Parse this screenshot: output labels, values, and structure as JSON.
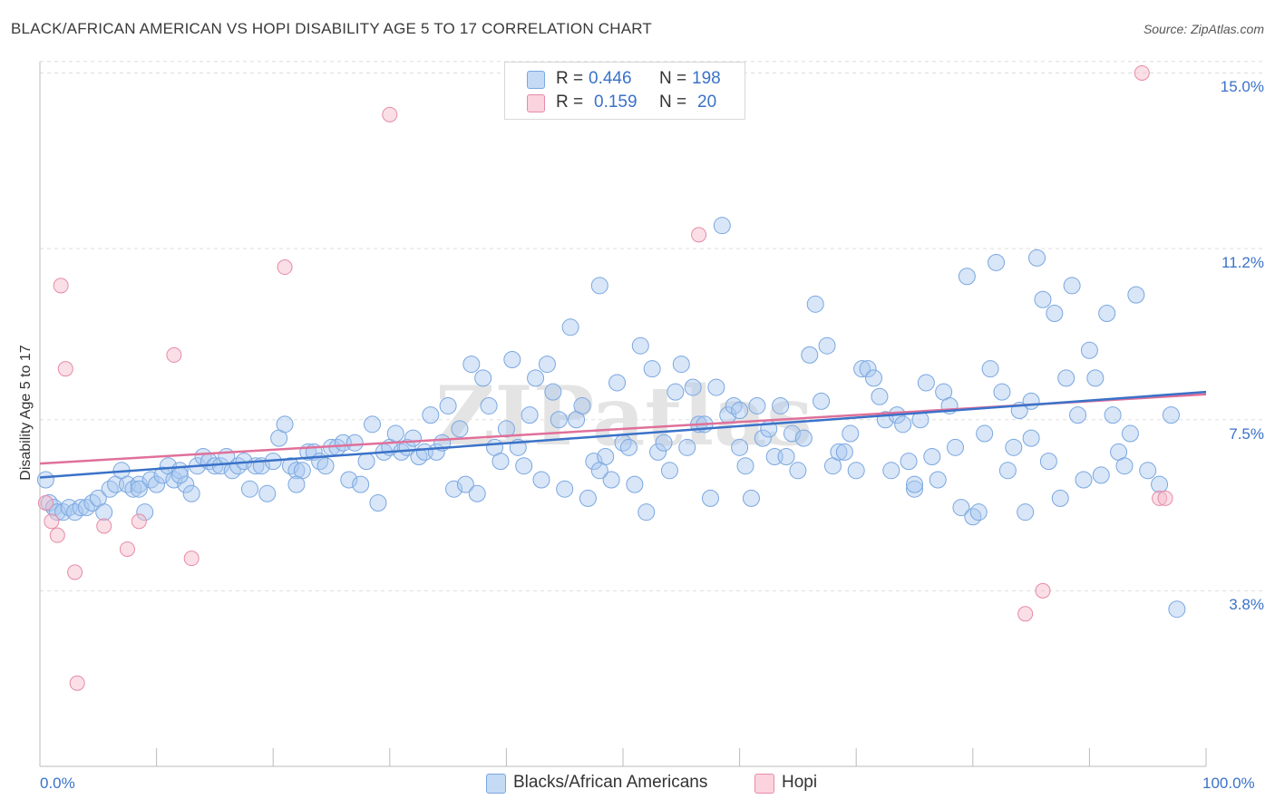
{
  "title": "BLACK/AFRICAN AMERICAN VS HOPI DISABILITY AGE 5 TO 17 CORRELATION CHART",
  "source": "Source: ZipAtlas.com",
  "watermark": "ZIPatlas",
  "legend": {
    "r_label": "R =",
    "n_label": "N =",
    "entries": [
      {
        "r": "0.446",
        "n": "198",
        "color": "#a8c8f0"
      },
      {
        "r": "0.159",
        "n": "20",
        "color": "#f5b8ca"
      }
    ]
  },
  "bottom_legend": [
    {
      "label": "Blacks/African Americans",
      "color": "#a8c8f0"
    },
    {
      "label": "Hopi",
      "color": "#f5b8ca"
    }
  ],
  "colors": {
    "blue_point": "#a8c8f0",
    "blue_stroke": "#7aa7e0",
    "blue_line": "#3a72c8",
    "pink_point": "#f5b8ca",
    "pink_stroke": "#e88aa6",
    "pink_line": "#e0709a",
    "axis_label": "#3a72c8",
    "grid": "#dddddd"
  },
  "chart_data": {
    "type": "scatter",
    "title": "BLACK/AFRICAN AMERICAN VS HOPI DISABILITY AGE 5 TO 17 CORRELATION CHART",
    "xlabel": "",
    "ylabel": "Disability Age 5 to 17",
    "xlim": [
      0,
      100
    ],
    "ylim": [
      0,
      15.5
    ],
    "x_tick_labels": [
      "0.0%",
      "100.0%"
    ],
    "y_tick_labels": [
      "3.8%",
      "7.5%",
      "11.2%",
      "15.0%"
    ],
    "y_ticks": [
      3.8,
      7.5,
      11.2,
      15.0
    ],
    "grid": true,
    "legend_position": "top-center",
    "series": [
      {
        "name": "Blacks/African Americans",
        "r": 0.446,
        "n": 198,
        "trend": {
          "x": [
            0,
            100
          ],
          "y": [
            6.25,
            8.1
          ]
        },
        "points": [
          [
            0.5,
            6.2
          ],
          [
            0.8,
            5.7
          ],
          [
            1.2,
            5.6
          ],
          [
            1.5,
            5.5
          ],
          [
            2,
            5.5
          ],
          [
            2.5,
            5.6
          ],
          [
            3,
            5.5
          ],
          [
            3.5,
            5.6
          ],
          [
            4,
            5.6
          ],
          [
            4.5,
            5.7
          ],
          [
            5,
            5.8
          ],
          [
            5.5,
            5.5
          ],
          [
            6,
            6.0
          ],
          [
            6.5,
            6.1
          ],
          [
            7,
            6.4
          ],
          [
            7.5,
            6.1
          ],
          [
            8,
            6.0
          ],
          [
            8.5,
            6.1
          ],
          [
            9,
            5.5
          ],
          [
            9.5,
            6.2
          ],
          [
            10,
            6.1
          ],
          [
            10.5,
            6.3
          ],
          [
            11,
            6.5
          ],
          [
            11.5,
            6.2
          ],
          [
            12,
            6.4
          ],
          [
            12.5,
            6.1
          ],
          [
            13,
            5.9
          ],
          [
            13.5,
            6.5
          ],
          [
            14,
            6.7
          ],
          [
            14.5,
            6.6
          ],
          [
            15,
            6.5
          ],
          [
            15.5,
            6.5
          ],
          [
            16,
            6.7
          ],
          [
            16.5,
            6.4
          ],
          [
            17,
            6.5
          ],
          [
            17.5,
            6.6
          ],
          [
            18,
            6.0
          ],
          [
            18.5,
            6.5
          ],
          [
            19,
            6.5
          ],
          [
            19.5,
            5.9
          ],
          [
            20,
            6.6
          ],
          [
            20.5,
            7.1
          ],
          [
            21,
            7.4
          ],
          [
            21.5,
            6.5
          ],
          [
            22,
            6.4
          ],
          [
            22.5,
            6.4
          ],
          [
            23,
            6.8
          ],
          [
            23.5,
            6.8
          ],
          [
            24,
            6.6
          ],
          [
            24.5,
            6.5
          ],
          [
            25,
            6.9
          ],
          [
            25.5,
            6.9
          ],
          [
            26,
            7.0
          ],
          [
            26.5,
            6.2
          ],
          [
            27,
            7.0
          ],
          [
            27.5,
            6.1
          ],
          [
            28,
            6.6
          ],
          [
            28.5,
            7.4
          ],
          [
            29,
            5.7
          ],
          [
            29.5,
            6.8
          ],
          [
            30,
            6.9
          ],
          [
            30.5,
            7.2
          ],
          [
            31,
            6.8
          ],
          [
            31.5,
            6.9
          ],
          [
            32,
            7.1
          ],
          [
            32.5,
            6.7
          ],
          [
            33,
            6.8
          ],
          [
            33.5,
            7.6
          ],
          [
            34,
            6.8
          ],
          [
            34.5,
            7.0
          ],
          [
            35,
            7.8
          ],
          [
            35.5,
            6.0
          ],
          [
            36,
            7.3
          ],
          [
            36.5,
            6.1
          ],
          [
            37,
            8.7
          ],
          [
            37.5,
            5.9
          ],
          [
            38,
            8.4
          ],
          [
            38.5,
            7.8
          ],
          [
            39,
            6.9
          ],
          [
            39.5,
            6.6
          ],
          [
            40,
            7.3
          ],
          [
            40.5,
            8.8
          ],
          [
            41,
            6.9
          ],
          [
            41.5,
            6.5
          ],
          [
            42,
            7.6
          ],
          [
            42.5,
            8.4
          ],
          [
            43,
            6.2
          ],
          [
            43.5,
            8.7
          ],
          [
            44,
            8.1
          ],
          [
            44.5,
            7.5
          ],
          [
            45,
            6.0
          ],
          [
            45.5,
            9.5
          ],
          [
            46,
            7.5
          ],
          [
            46.5,
            7.8
          ],
          [
            47,
            5.8
          ],
          [
            47.5,
            6.6
          ],
          [
            48,
            10.4
          ],
          [
            48.5,
            6.7
          ],
          [
            49,
            6.2
          ],
          [
            49.5,
            8.3
          ],
          [
            50,
            7.0
          ],
          [
            50.5,
            6.9
          ],
          [
            51,
            6.1
          ],
          [
            51.5,
            9.1
          ],
          [
            52,
            5.5
          ],
          [
            52.5,
            8.6
          ],
          [
            53,
            6.8
          ],
          [
            53.5,
            7.0
          ],
          [
            54,
            6.4
          ],
          [
            54.5,
            8.1
          ],
          [
            55,
            8.7
          ],
          [
            55.5,
            6.9
          ],
          [
            56,
            8.2
          ],
          [
            56.5,
            7.4
          ],
          [
            57,
            7.4
          ],
          [
            57.5,
            5.8
          ],
          [
            58,
            8.2
          ],
          [
            58.5,
            11.7
          ],
          [
            59,
            7.6
          ],
          [
            59.5,
            7.8
          ],
          [
            60,
            7.7
          ],
          [
            60.5,
            6.5
          ],
          [
            61,
            5.8
          ],
          [
            61.5,
            7.8
          ],
          [
            62,
            7.1
          ],
          [
            62.5,
            7.3
          ],
          [
            63,
            6.7
          ],
          [
            63.5,
            7.8
          ],
          [
            64,
            6.7
          ],
          [
            64.5,
            7.2
          ],
          [
            65,
            6.4
          ],
          [
            65.5,
            7.1
          ],
          [
            66,
            8.9
          ],
          [
            66.5,
            10.0
          ],
          [
            67,
            7.9
          ],
          [
            67.5,
            9.1
          ],
          [
            68,
            6.5
          ],
          [
            68.5,
            6.8
          ],
          [
            69,
            6.8
          ],
          [
            69.5,
            7.2
          ],
          [
            70,
            6.4
          ],
          [
            70.5,
            8.6
          ],
          [
            71,
            8.6
          ],
          [
            71.5,
            8.4
          ],
          [
            72,
            8.0
          ],
          [
            72.5,
            7.5
          ],
          [
            73,
            6.4
          ],
          [
            73.5,
            7.6
          ],
          [
            74,
            7.4
          ],
          [
            74.5,
            6.6
          ],
          [
            75,
            6.0
          ],
          [
            75.5,
            7.5
          ],
          [
            76,
            8.3
          ],
          [
            76.5,
            6.7
          ],
          [
            77,
            6.2
          ],
          [
            77.5,
            8.1
          ],
          [
            78,
            7.8
          ],
          [
            78.5,
            6.9
          ],
          [
            79,
            5.6
          ],
          [
            79.5,
            10.6
          ],
          [
            80,
            5.4
          ],
          [
            80.5,
            5.5
          ],
          [
            81,
            7.2
          ],
          [
            81.5,
            8.6
          ],
          [
            82,
            10.9
          ],
          [
            82.5,
            8.1
          ],
          [
            83,
            6.4
          ],
          [
            83.5,
            6.9
          ],
          [
            84,
            7.7
          ],
          [
            84.5,
            5.5
          ],
          [
            85,
            7.9
          ],
          [
            85.5,
            11.0
          ],
          [
            86,
            10.1
          ],
          [
            86.5,
            6.6
          ],
          [
            87,
            9.8
          ],
          [
            87.5,
            5.8
          ],
          [
            88,
            8.4
          ],
          [
            88.5,
            10.4
          ],
          [
            89,
            7.6
          ],
          [
            89.5,
            6.2
          ],
          [
            90,
            9.0
          ],
          [
            90.5,
            8.4
          ],
          [
            91,
            6.3
          ],
          [
            91.5,
            9.8
          ],
          [
            92,
            7.6
          ],
          [
            92.5,
            6.8
          ],
          [
            93,
            6.5
          ],
          [
            93.5,
            7.2
          ],
          [
            94,
            10.2
          ],
          [
            97.5,
            3.4
          ],
          [
            8.5,
            6.0
          ],
          [
            12,
            6.3
          ],
          [
            22,
            6.1
          ],
          [
            48,
            6.4
          ],
          [
            60,
            6.9
          ],
          [
            75,
            6.1
          ],
          [
            85,
            7.1
          ],
          [
            96,
            6.1
          ],
          [
            95,
            6.4
          ],
          [
            97,
            7.6
          ]
        ]
      },
      {
        "name": "Hopi",
        "r": 0.159,
        "n": 20,
        "trend": {
          "x": [
            0,
            100
          ],
          "y": [
            6.55,
            8.05
          ]
        },
        "points": [
          [
            0.5,
            5.7
          ],
          [
            1,
            5.3
          ],
          [
            1.5,
            5.0
          ],
          [
            1.8,
            10.4
          ],
          [
            2.2,
            8.6
          ],
          [
            3,
            4.2
          ],
          [
            3.2,
            1.8
          ],
          [
            5.5,
            5.2
          ],
          [
            7.5,
            4.7
          ],
          [
            8.5,
            5.3
          ],
          [
            11.5,
            8.9
          ],
          [
            13,
            4.5
          ],
          [
            21,
            10.8
          ],
          [
            30,
            14.1
          ],
          [
            56.5,
            11.5
          ],
          [
            84.5,
            3.3
          ],
          [
            86,
            3.8
          ],
          [
            94.5,
            15.0
          ],
          [
            96,
            5.8
          ],
          [
            96.5,
            5.8
          ]
        ]
      }
    ]
  }
}
